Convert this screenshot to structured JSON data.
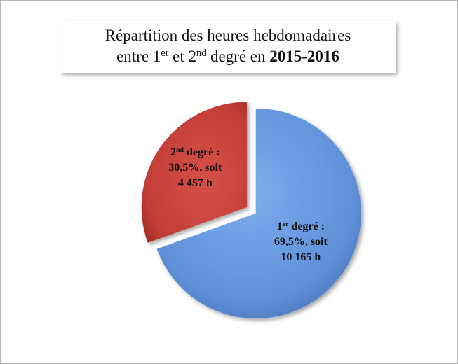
{
  "chart_data": {
    "type": "pie",
    "title": [
      "Répartition des heures hebdomadaires",
      "entre 1er et 2nd degré en 2015-2016"
    ],
    "categories": [
      "1er degré :",
      "2nd degré :"
    ],
    "values": [
      69.5,
      30.5
    ],
    "value_labels": [
      "69,5%, soit",
      "30,5%, soit"
    ],
    "hours_labels": [
      "10 165 h",
      "4 457 h"
    ],
    "colors": [
      "#6a9be0",
      "#c9423b"
    ],
    "exploded": [
      false,
      true
    ]
  }
}
